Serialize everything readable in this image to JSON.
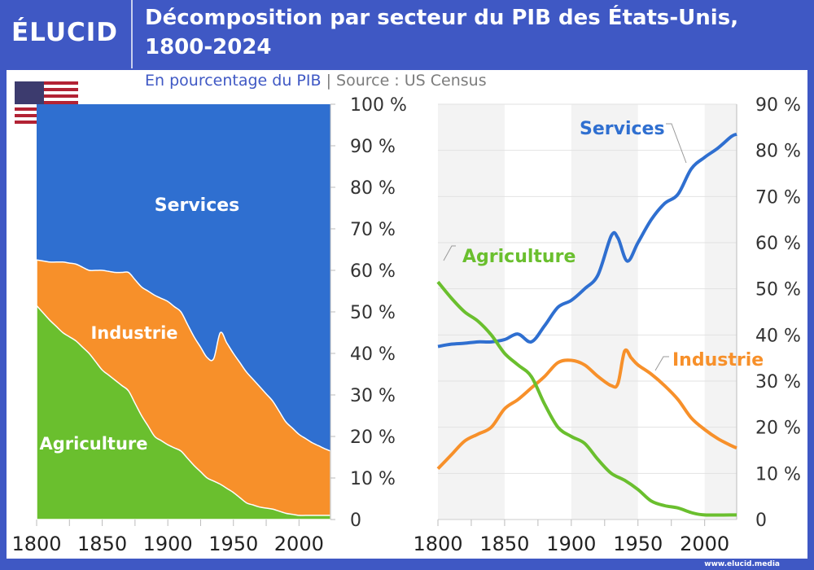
{
  "header": {
    "logo": "ÉLUCID",
    "title_line1": "Décomposition par secteur du PIB des États-Unis,",
    "title_line2": "1800-2024",
    "subtitle": "En pourcentage du PIB",
    "separator": "|",
    "source": "Source : US Census",
    "footer": "www.elucid.media"
  },
  "colors": {
    "services": "#2f6fd0",
    "industry": "#f7902a",
    "agriculture": "#6abf2e",
    "frame": "#3f58c4"
  },
  "chart_data": [
    {
      "type": "area",
      "stacked": true,
      "x_ticks": [
        1800,
        1850,
        1900,
        1950,
        2000
      ],
      "x_tick_labels": [
        "1800",
        "1850",
        "1900",
        "1950",
        "2000"
      ],
      "xlim": [
        1800,
        2024
      ],
      "ylim": [
        0,
        100
      ],
      "y_tick_labels": [
        "0",
        "10 %",
        "20 %",
        "30 %",
        "40 %",
        "50 %",
        "60 %",
        "70 %",
        "80 %",
        "90 %",
        "100 %"
      ],
      "grid": false,
      "series_labels": [
        "Agriculture",
        "Industrie",
        "Services"
      ]
    },
    {
      "type": "line",
      "x_ticks": [
        1800,
        1850,
        1900,
        1950,
        2000
      ],
      "x_tick_labels": [
        "1800",
        "1850",
        "1900",
        "1950",
        "2000"
      ],
      "xlim": [
        1800,
        2024
      ],
      "ylim": [
        0,
        90
      ],
      "y_tick_labels": [
        "0",
        "10 %",
        "20 %",
        "30 %",
        "40 %",
        "50 %",
        "60 %",
        "70 %",
        "80 %",
        "90 %"
      ],
      "grid": true,
      "series": [
        {
          "name": "Services",
          "x": [
            1800,
            1810,
            1820,
            1830,
            1840,
            1850,
            1860,
            1870,
            1880,
            1890,
            1900,
            1910,
            1920,
            1930,
            1935,
            1942,
            1950,
            1960,
            1970,
            1980,
            1990,
            2000,
            2010,
            2020,
            2024
          ],
          "values": [
            37.5,
            38,
            38.2,
            38.5,
            38.5,
            39,
            40.2,
            38.5,
            42,
            46,
            47.5,
            50,
            53,
            61.5,
            61,
            56,
            60,
            65,
            68.5,
            70.5,
            76,
            78.5,
            80.5,
            83,
            83.5
          ]
        },
        {
          "name": "Industrie",
          "x": [
            1800,
            1810,
            1820,
            1830,
            1840,
            1850,
            1860,
            1870,
            1880,
            1890,
            1900,
            1910,
            1920,
            1930,
            1935,
            1940,
            1945,
            1950,
            1960,
            1970,
            1980,
            1990,
            2000,
            2010,
            2020,
            2024
          ],
          "values": [
            11,
            14,
            17,
            18.5,
            20,
            24,
            26,
            28.5,
            31,
            34,
            34.5,
            33.5,
            31,
            29,
            29.5,
            36.5,
            35,
            33.5,
            31.5,
            29,
            26,
            22,
            19.5,
            17.5,
            16,
            15.5
          ]
        },
        {
          "name": "Agriculture",
          "x": [
            1800,
            1810,
            1820,
            1830,
            1840,
            1850,
            1860,
            1870,
            1880,
            1890,
            1900,
            1910,
            1920,
            1930,
            1940,
            1950,
            1960,
            1970,
            1980,
            1990,
            2000,
            2024
          ],
          "values": [
            51.5,
            48,
            45,
            43,
            40,
            36,
            33.5,
            31,
            25,
            20,
            18,
            16.5,
            13,
            10,
            8.5,
            6.5,
            4,
            3,
            2.5,
            1.5,
            1,
            1
          ]
        }
      ]
    }
  ]
}
